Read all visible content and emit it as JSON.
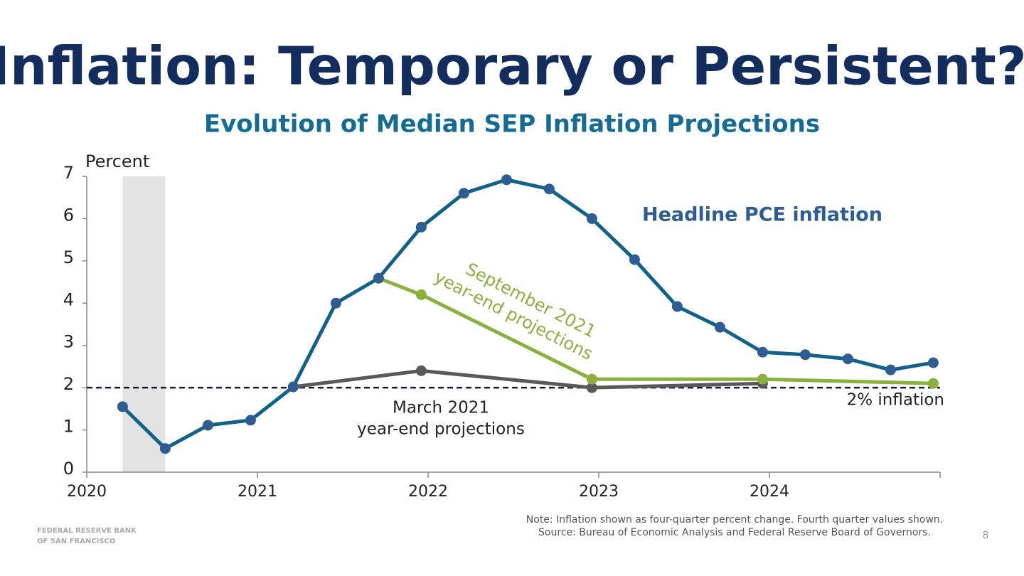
{
  "title": "Inflation: Temporary or Persistent?",
  "footer": {
    "organization": [
      "FEDERAL RESERVE BANK",
      "OF SAN FRANCISCO"
    ],
    "page_number": "8"
  },
  "chart_data": {
    "type": "line",
    "subtitle": "Evolution of Median SEP Inflation Projections",
    "y_axis_label": "Percent",
    "xlim": [
      2020,
      2025
    ],
    "xticks": [
      2020,
      2021,
      2022,
      2023,
      2024
    ],
    "ylim": [
      0,
      7
    ],
    "yticks": [
      0,
      1,
      2,
      3,
      4,
      5,
      6,
      7
    ],
    "shaded_region": [
      2020.21,
      2020.46
    ],
    "reference_line": {
      "value": 2,
      "label": "2% inflation"
    },
    "series": [
      {
        "label": [
          "Headline PCE inflation"
        ],
        "color": "#11628a",
        "marker_color": "#2d5d92",
        "x": [
          2020.21,
          2020.46,
          2020.71,
          2020.96,
          2021.21,
          2021.46,
          2021.71,
          2021.96,
          2022.21,
          2022.46,
          2022.71,
          2022.96,
          2023.21,
          2023.46,
          2023.71,
          2023.96,
          2024.21,
          2024.46,
          2024.71,
          2024.96
        ],
        "values": [
          1.55,
          0.56,
          1.11,
          1.23,
          2.02,
          4.0,
          4.59,
          5.8,
          6.6,
          6.92,
          6.7,
          6.0,
          5.03,
          3.92,
          3.43,
          2.84,
          2.78,
          2.68,
          2.42,
          2.59
        ]
      },
      {
        "label": [
          "March 2021",
          "year-end projections"
        ],
        "color": "#595959",
        "marker_color": "#595959",
        "x": [
          2021.21,
          2021.96,
          2022.96,
          2023.96
        ],
        "values": [
          2.02,
          2.4,
          2.0,
          2.1
        ]
      },
      {
        "label": [
          "September 2021",
          "year-end projections"
        ],
        "color": "#8bb03e",
        "marker_color": "#8bb03e",
        "x": [
          2021.71,
          2021.96,
          2022.96,
          2023.96,
          2024.96
        ],
        "values": [
          4.59,
          4.2,
          2.2,
          2.2,
          2.1
        ]
      }
    ],
    "note": [
      "Note: Inflation shown as four-quarter percent change. Fourth quarter values shown.",
      "Source: Bureau of Economic Analysis and Federal Reserve Board of Governors."
    ]
  }
}
